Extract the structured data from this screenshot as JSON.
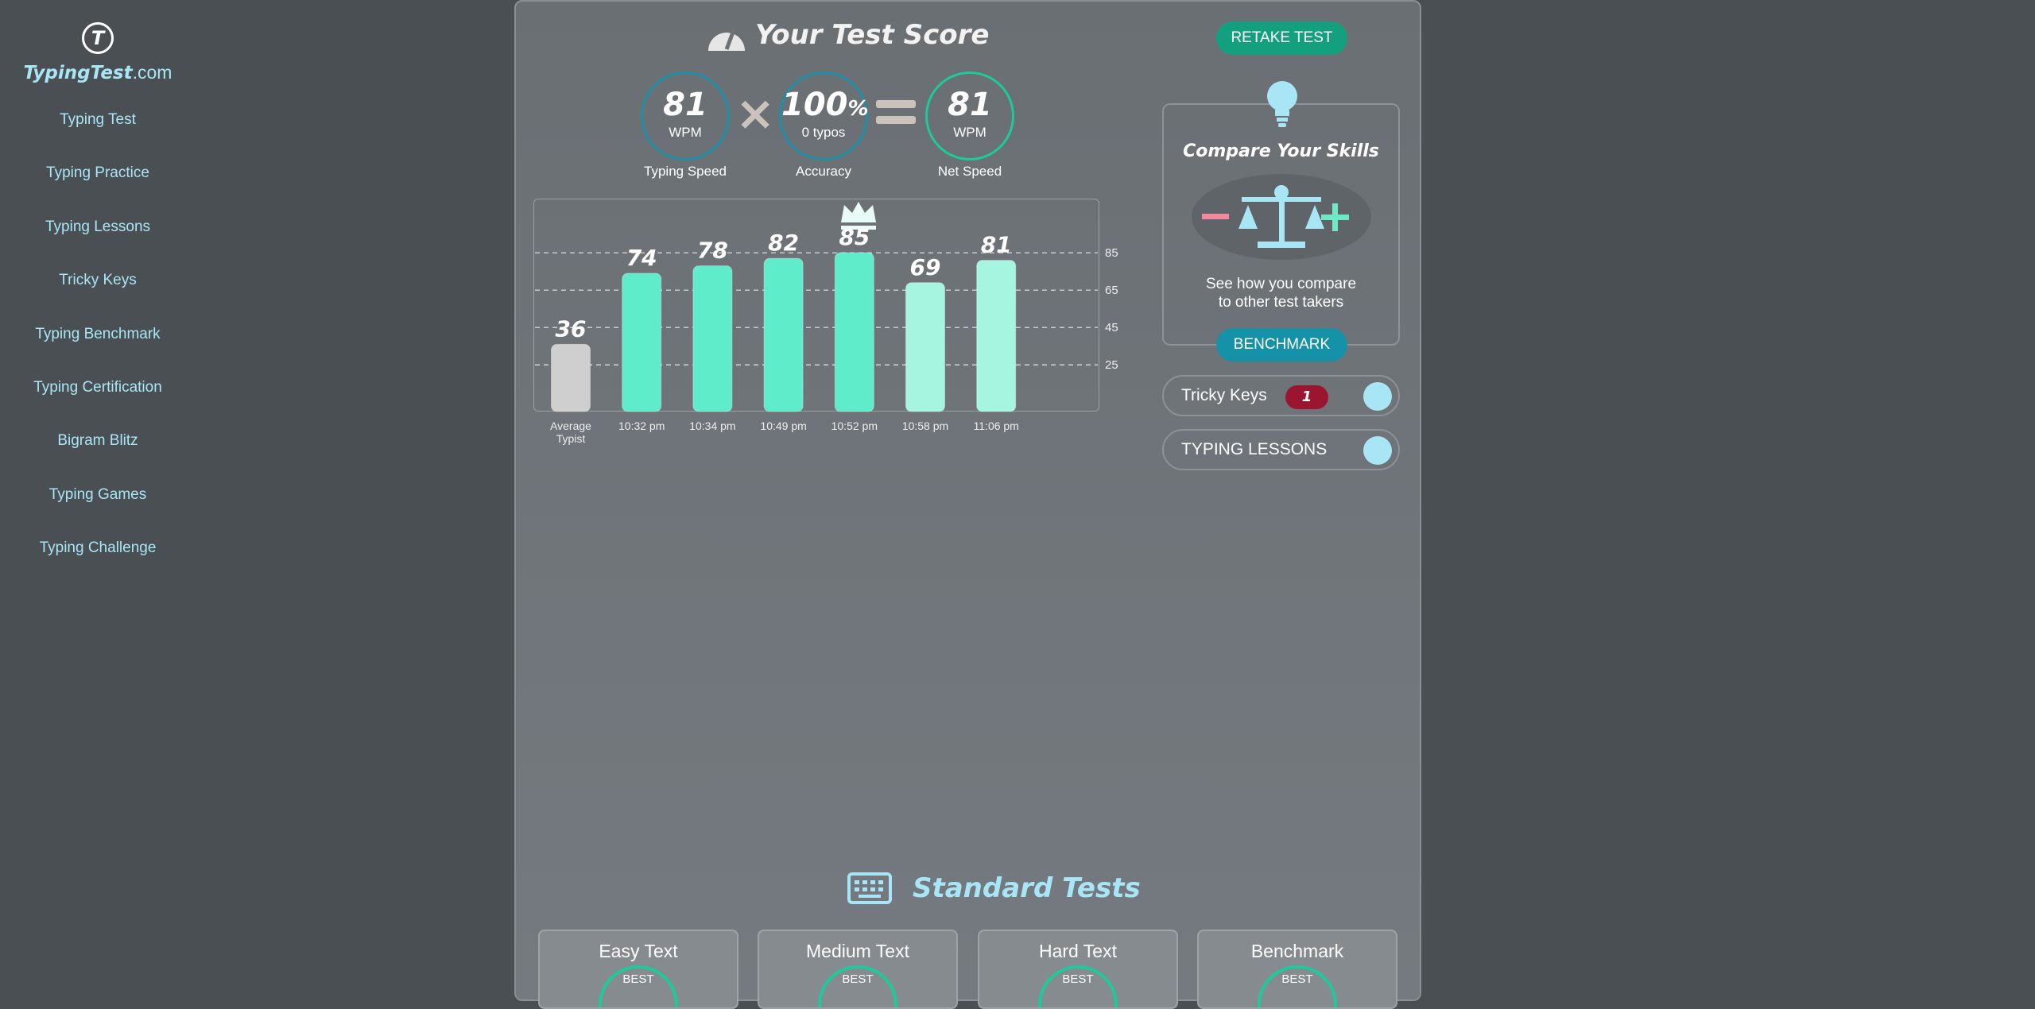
{
  "sidebar": {
    "logo": {
      "name": "TypingTest",
      "suffix": ".com"
    },
    "nav": [
      "Typing Test",
      "Typing Practice",
      "Typing Lessons",
      "Tricky Keys",
      "Typing Benchmark",
      "Typing Certification",
      "Bigram Blitz",
      "Typing Games",
      "Typing Challenge"
    ]
  },
  "score": {
    "title": "Your Test Score",
    "retake": "RETAKE TEST",
    "typing_speed": {
      "value": "81",
      "unit": "WPM",
      "label": "Typing Speed"
    },
    "accuracy": {
      "value": "100",
      "unit": "%",
      "sub": "0 typos",
      "label": "Accuracy"
    },
    "net_speed": {
      "value": "81",
      "unit": "WPM",
      "label": "Net Speed"
    }
  },
  "chart_data": {
    "type": "bar",
    "categories": [
      "Average Typist",
      "10:32 pm",
      "10:34 pm",
      "10:49 pm",
      "10:52 pm",
      "10:58 pm",
      "11:06 pm"
    ],
    "values": [
      36,
      74,
      78,
      82,
      85,
      69,
      81
    ],
    "colors": [
      "#cfcfcf",
      "#5eeccb",
      "#5eeccb",
      "#5eeccb",
      "#5eeccb",
      "#a6f5e0",
      "#a6f5e0"
    ],
    "ylim": [
      0,
      114
    ],
    "yticks": [
      25,
      45,
      65,
      85
    ],
    "grid": true
  },
  "compare": {
    "title": "Compare Your Skills",
    "text": [
      "See how you compare",
      "to other test takers"
    ],
    "button": "BENCHMARK"
  },
  "links": [
    {
      "label": "Tricky Keys",
      "badge": "1"
    },
    {
      "label": "TYPING LESSONS"
    }
  ],
  "standard_tests": {
    "title": "Standard Tests",
    "cards": [
      {
        "title": "Easy Text",
        "best": "BEST"
      },
      {
        "title": "Medium Text",
        "best": "BEST"
      },
      {
        "title": "Hard Text",
        "best": "BEST"
      },
      {
        "title": "Benchmark",
        "best": "BEST"
      }
    ]
  }
}
